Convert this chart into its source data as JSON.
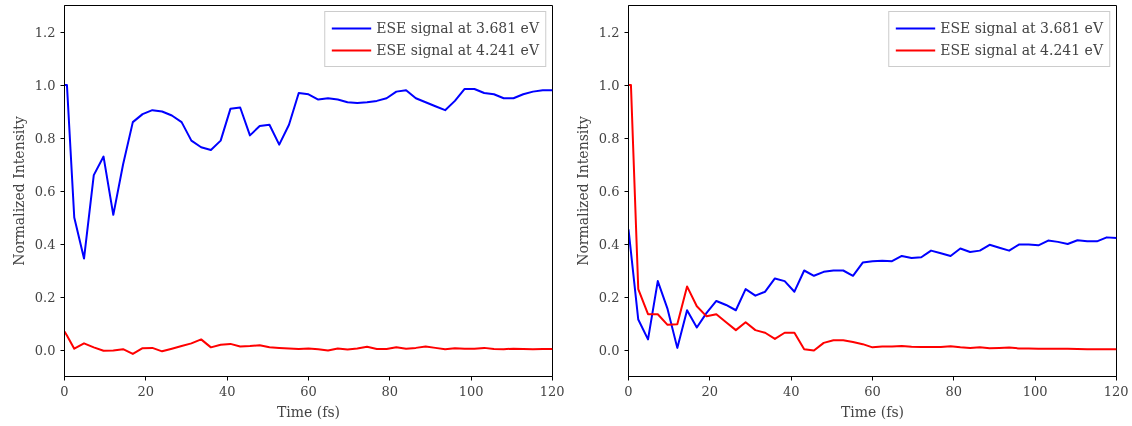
{
  "chart_data": [
    {
      "type": "line",
      "xlabel": "Time (fs)",
      "ylabel": "Normalized Intensity",
      "legend": "top right",
      "xlim": [
        0,
        120
      ],
      "ylim": [
        -0.1,
        1.3
      ],
      "xticks": [
        0,
        20,
        40,
        60,
        80,
        100,
        120
      ],
      "yticks": [
        {
          "value": 0,
          "label": "0.0"
        },
        {
          "value": 0.2,
          "label": "0.2"
        },
        {
          "value": 0.4,
          "label": "0.4"
        },
        {
          "value": 0.6,
          "label": "0.6"
        },
        {
          "value": 0.8,
          "label": "0.8"
        },
        {
          "value": 1.0,
          "label": "1.0"
        },
        {
          "value": 1.2,
          "label": "1.2"
        }
      ],
      "x": [
        0,
        0.6,
        2.4,
        4.8,
        7.2,
        9.6,
        12,
        14.4,
        16.8,
        19.2,
        21.6,
        24,
        26.4,
        28.8,
        31.2,
        33.6,
        36,
        38.4,
        40.8,
        43.2,
        45.6,
        48,
        50.4,
        52.8,
        55.2,
        57.6,
        60,
        62.4,
        64.8,
        67.2,
        69.6,
        72,
        74.4,
        76.8,
        79.2,
        81.6,
        84,
        86.4,
        88.8,
        91.2,
        93.6,
        96,
        98.4,
        100.8,
        103.2,
        105.6,
        108,
        110.4,
        112.8,
        115.2,
        117.6,
        120
      ],
      "series": [
        {
          "name": "ESE signal at 3.681 eV",
          "color": "#0000ff",
          "values": [
            1.0,
            1.0,
            0.5,
            0.345,
            0.66,
            0.73,
            0.51,
            0.7,
            0.86,
            0.89,
            0.905,
            0.9,
            0.885,
            0.86,
            0.79,
            0.765,
            0.755,
            0.79,
            0.91,
            0.915,
            0.81,
            0.845,
            0.85,
            0.775,
            0.85,
            0.97,
            0.965,
            0.945,
            0.95,
            0.945,
            0.935,
            0.932,
            0.935,
            0.94,
            0.95,
            0.975,
            0.98,
            0.95,
            0.935,
            0.92,
            0.905,
            0.94,
            0.985,
            0.985,
            0.97,
            0.965,
            0.95,
            0.95,
            0.965,
            0.975,
            0.98,
            0.98
          ]
        },
        {
          "name": "ESE signal at 4.241 eV",
          "color": "#ff0000",
          "values": [
            0.07,
            0.055,
            0.005,
            0.025,
            0.01,
            -0.003,
            -0.002,
            0.003,
            -0.015,
            0.007,
            0.008,
            -0.005,
            0.005,
            0.015,
            0.025,
            0.04,
            0.01,
            0.02,
            0.023,
            0.013,
            0.015,
            0.018,
            0.01,
            0.008,
            0.006,
            0.004,
            0.006,
            0.003,
            -0.002,
            0.006,
            0.002,
            0.006,
            0.012,
            0.004,
            0.004,
            0.01,
            0.005,
            0.008,
            0.013,
            0.008,
            0.003,
            0.007,
            0.005,
            0.005,
            0.008,
            0.004,
            0.003,
            0.005,
            0.004,
            0.003,
            0.004,
            0.004
          ]
        }
      ]
    },
    {
      "type": "line",
      "xlabel": "Time (fs)",
      "ylabel": "Normalized Intensity",
      "legend": "top right",
      "xlim": [
        0,
        120
      ],
      "ylim": [
        -0.1,
        1.3
      ],
      "xticks": [
        0,
        20,
        40,
        60,
        80,
        100,
        120
      ],
      "yticks": [
        {
          "value": 0,
          "label": "0.0"
        },
        {
          "value": 0.2,
          "label": "0.2"
        },
        {
          "value": 0.4,
          "label": "0.4"
        },
        {
          "value": 0.6,
          "label": "0.6"
        },
        {
          "value": 0.8,
          "label": "0.8"
        },
        {
          "value": 1.0,
          "label": "1.0"
        },
        {
          "value": 1.2,
          "label": "1.2"
        }
      ],
      "x": [
        0,
        0.6,
        2.4,
        4.8,
        7.2,
        9.6,
        12,
        14.4,
        16.8,
        19.2,
        21.6,
        24,
        26.4,
        28.8,
        31.2,
        33.6,
        36,
        38.4,
        40.8,
        43.2,
        45.6,
        48,
        50.4,
        52.8,
        55.2,
        57.6,
        60,
        62.4,
        64.8,
        67.2,
        69.6,
        72,
        74.4,
        76.8,
        79.2,
        81.6,
        84,
        86.4,
        88.8,
        91.2,
        93.6,
        96,
        98.4,
        100.8,
        103.2,
        105.6,
        108,
        110.4,
        112.8,
        115.2,
        117.6,
        120
      ],
      "series": [
        {
          "name": "ESE signal at 3.681 eV",
          "color": "#0000ff",
          "values": [
            0.455,
            0.37,
            0.115,
            0.04,
            0.26,
            0.155,
            0.008,
            0.15,
            0.085,
            0.14,
            0.185,
            0.17,
            0.15,
            0.23,
            0.205,
            0.22,
            0.27,
            0.26,
            0.22,
            0.3,
            0.28,
            0.295,
            0.3,
            0.3,
            0.28,
            0.33,
            0.335,
            0.337,
            0.335,
            0.355,
            0.347,
            0.35,
            0.375,
            0.365,
            0.355,
            0.383,
            0.37,
            0.375,
            0.397,
            0.386,
            0.375,
            0.398,
            0.398,
            0.395,
            0.413,
            0.408,
            0.4,
            0.414,
            0.41,
            0.41,
            0.425,
            0.423
          ]
        },
        {
          "name": "ESE signal at 4.241 eV",
          "color": "#ff0000",
          "values": [
            1.0,
            1.0,
            0.23,
            0.135,
            0.135,
            0.095,
            0.097,
            0.24,
            0.165,
            0.127,
            0.135,
            0.105,
            0.075,
            0.105,
            0.075,
            0.065,
            0.042,
            0.065,
            0.065,
            0.003,
            -0.002,
            0.027,
            0.037,
            0.037,
            0.03,
            0.022,
            0.01,
            0.013,
            0.013,
            0.015,
            0.012,
            0.011,
            0.011,
            0.011,
            0.014,
            0.01,
            0.008,
            0.01,
            0.007,
            0.008,
            0.009,
            0.006,
            0.006,
            0.005,
            0.005,
            0.005,
            0.005,
            0.004,
            0.003,
            0.003,
            0.003,
            0.003
          ]
        }
      ]
    }
  ]
}
